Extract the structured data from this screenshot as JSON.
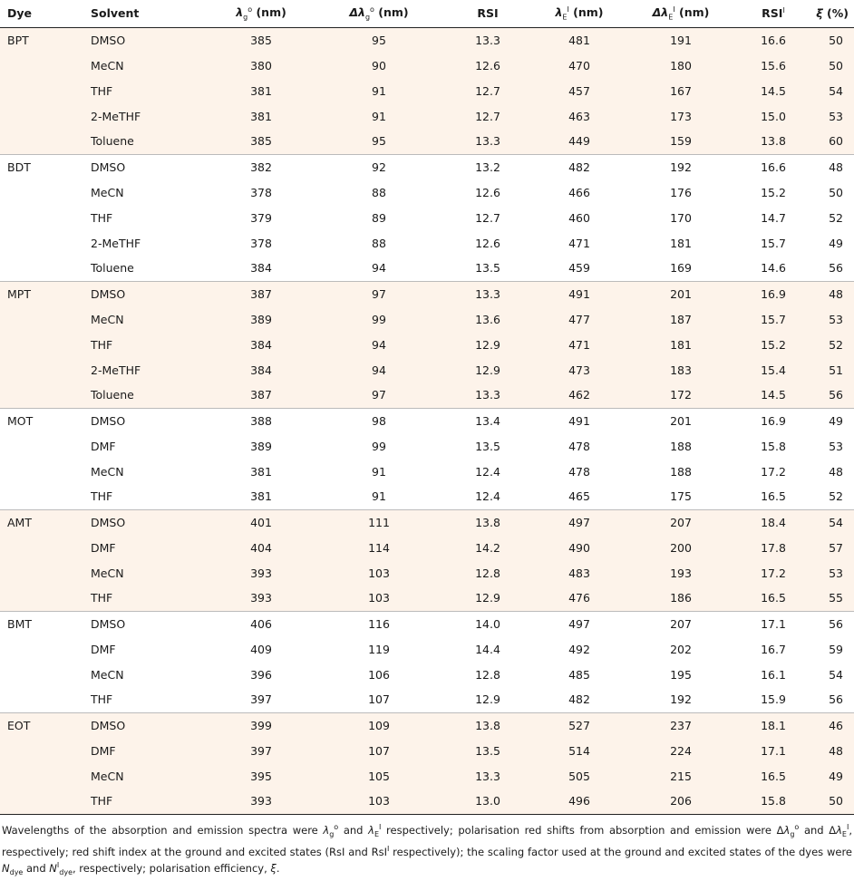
{
  "headers": {
    "dye": "Dye",
    "solvent": "Solvent",
    "lambda_g": "λ",
    "lambda_g_sub": "g",
    "lambda_g_sup": "o",
    "lambda_g_unit": "(nm)",
    "delta_lambda_g": "Δλ",
    "delta_lambda_g_sub": "g",
    "delta_lambda_g_sup": "o",
    "delta_lambda_g_unit": "(nm)",
    "rsi": "RSI",
    "lambda_e": "λ",
    "lambda_e_sub": "E",
    "lambda_e_sup": "I",
    "lambda_e_unit": "(nm)",
    "delta_lambda_e": "Δλ",
    "delta_lambda_e_sub": "E",
    "delta_lambda_e_sup": "I",
    "delta_lambda_e_unit": "(nm)",
    "rsi_i": "RSI",
    "rsi_i_sup": "I",
    "xi": "ξ",
    "xi_unit": "(%)"
  },
  "groups": [
    {
      "dye": "BPT",
      "rows": [
        [
          "DMSO",
          "385",
          "95",
          "13.3",
          "481",
          "191",
          "16.6",
          "50"
        ],
        [
          "MeCN",
          "380",
          "90",
          "12.6",
          "470",
          "180",
          "15.6",
          "50"
        ],
        [
          "THF",
          "381",
          "91",
          "12.7",
          "457",
          "167",
          "14.5",
          "54"
        ],
        [
          "2-MeTHF",
          "381",
          "91",
          "12.7",
          "463",
          "173",
          "15.0",
          "53"
        ],
        [
          "Toluene",
          "385",
          "95",
          "13.3",
          "449",
          "159",
          "13.8",
          "60"
        ]
      ]
    },
    {
      "dye": "BDT",
      "rows": [
        [
          "DMSO",
          "382",
          "92",
          "13.2",
          "482",
          "192",
          "16.6",
          "48"
        ],
        [
          "MeCN",
          "378",
          "88",
          "12.6",
          "466",
          "176",
          "15.2",
          "50"
        ],
        [
          "THF",
          "379",
          "89",
          "12.7",
          "460",
          "170",
          "14.7",
          "52"
        ],
        [
          "2-MeTHF",
          "378",
          "88",
          "12.6",
          "471",
          "181",
          "15.7",
          "49"
        ],
        [
          "Toluene",
          "384",
          "94",
          "13.5",
          "459",
          "169",
          "14.6",
          "56"
        ]
      ]
    },
    {
      "dye": "MPT",
      "rows": [
        [
          "DMSO",
          "387",
          "97",
          "13.3",
          "491",
          "201",
          "16.9",
          "48"
        ],
        [
          "MeCN",
          "389",
          "99",
          "13.6",
          "477",
          "187",
          "15.7",
          "53"
        ],
        [
          "THF",
          "384",
          "94",
          "12.9",
          "471",
          "181",
          "15.2",
          "52"
        ],
        [
          "2-MeTHF",
          "384",
          "94",
          "12.9",
          "473",
          "183",
          "15.4",
          "51"
        ],
        [
          "Toluene",
          "387",
          "97",
          "13.3",
          "462",
          "172",
          "14.5",
          "56"
        ]
      ]
    },
    {
      "dye": "MOT",
      "rows": [
        [
          "DMSO",
          "388",
          "98",
          "13.4",
          "491",
          "201",
          "16.9",
          "49"
        ],
        [
          "DMF",
          "389",
          "99",
          "13.5",
          "478",
          "188",
          "15.8",
          "53"
        ],
        [
          "MeCN",
          "381",
          "91",
          "12.4",
          "478",
          "188",
          "17.2",
          "48"
        ],
        [
          "THF",
          "381",
          "91",
          "12.4",
          "465",
          "175",
          "16.5",
          "52"
        ]
      ]
    },
    {
      "dye": "AMT",
      "rows": [
        [
          "DMSO",
          "401",
          "111",
          "13.8",
          "497",
          "207",
          "18.4",
          "54"
        ],
        [
          "DMF",
          "404",
          "114",
          "14.2",
          "490",
          "200",
          "17.8",
          "57"
        ],
        [
          "MeCN",
          "393",
          "103",
          "12.8",
          "483",
          "193",
          "17.2",
          "53"
        ],
        [
          "THF",
          "393",
          "103",
          "12.9",
          "476",
          "186",
          "16.5",
          "55"
        ]
      ]
    },
    {
      "dye": "BMT",
      "rows": [
        [
          "DMSO",
          "406",
          "116",
          "14.0",
          "497",
          "207",
          "17.1",
          "56"
        ],
        [
          "DMF",
          "409",
          "119",
          "14.4",
          "492",
          "202",
          "16.7",
          "59"
        ],
        [
          "MeCN",
          "396",
          "106",
          "12.8",
          "485",
          "195",
          "16.1",
          "54"
        ],
        [
          "THF",
          "397",
          "107",
          "12.9",
          "482",
          "192",
          "15.9",
          "56"
        ]
      ]
    },
    {
      "dye": "EOT",
      "rows": [
        [
          "DMSO",
          "399",
          "109",
          "13.8",
          "527",
          "237",
          "18.1",
          "46"
        ],
        [
          "DMF",
          "397",
          "107",
          "13.5",
          "514",
          "224",
          "17.1",
          "48"
        ],
        [
          "MeCN",
          "395",
          "105",
          "13.3",
          "505",
          "215",
          "16.5",
          "49"
        ],
        [
          "THF",
          "393",
          "103",
          "13.0",
          "496",
          "206",
          "15.8",
          "50"
        ]
      ]
    }
  ],
  "footnote": "Wavelengths of the absorption and emission spectra were λgo and λEI respectively; polarisation red shifts from absorption and emission were Δλgo and ΔλEI, respectively; red shift index at the ground and excited states (RsI and RsII respectively); the scaling factor used at the ground and excited states of the dyes were Ndye and NIdye, respectively; polarisation efficiency, ξ.",
  "colors": {
    "shade": "#fdf3ea",
    "rule": "#222222"
  }
}
